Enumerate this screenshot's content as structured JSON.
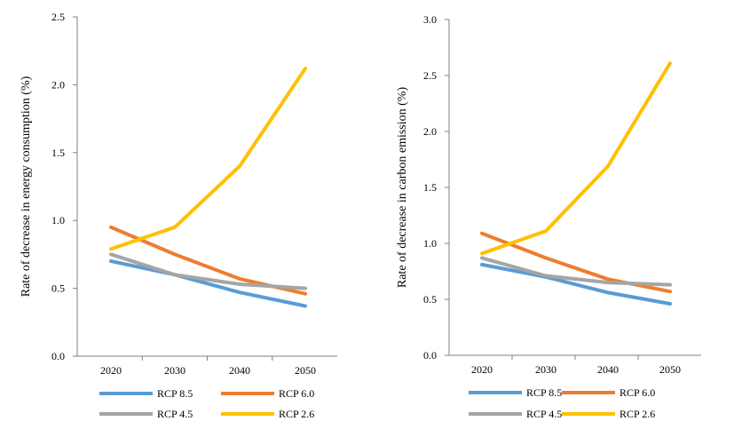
{
  "chart_data": [
    {
      "type": "line",
      "title": "",
      "xlabel": "",
      "ylabel": "Rate of decrease in energy consumption (%)",
      "categories": [
        "2020",
        "2030",
        "2040",
        "2050"
      ],
      "ylim": [
        0,
        2.5
      ],
      "yticks": [
        "0.0",
        "0.5",
        "1.0",
        "1.5",
        "2.0",
        "2.5"
      ],
      "grid": false,
      "legend_position": "bottom",
      "series": [
        {
          "name": "RCP 8.5",
          "color": "#5B9BD5",
          "values": [
            0.7,
            0.6,
            0.47,
            0.37
          ]
        },
        {
          "name": "RCP 6.0",
          "color": "#ED7D31",
          "values": [
            0.95,
            0.75,
            0.57,
            0.46
          ]
        },
        {
          "name": "RCP 4.5",
          "color": "#A5A5A5",
          "values": [
            0.75,
            0.6,
            0.53,
            0.5
          ]
        },
        {
          "name": "RCP 2.6",
          "color": "#FFC000",
          "values": [
            0.79,
            0.95,
            1.4,
            2.12
          ]
        }
      ]
    },
    {
      "type": "line",
      "title": "",
      "xlabel": "",
      "ylabel": "Rate of decrease in carbon emission (%)",
      "categories": [
        "2020",
        "2030",
        "2040",
        "2050"
      ],
      "ylim": [
        0,
        3.0
      ],
      "yticks": [
        "0.0",
        "0.5",
        "1.0",
        "1.5",
        "2.0",
        "2.5",
        "3.0"
      ],
      "grid": false,
      "legend_position": "bottom",
      "series": [
        {
          "name": "RCP 8.5",
          "color": "#5B9BD5",
          "values": [
            0.81,
            0.7,
            0.56,
            0.46
          ]
        },
        {
          "name": "RCP 6.0",
          "color": "#ED7D31",
          "values": [
            1.09,
            0.87,
            0.68,
            0.57
          ]
        },
        {
          "name": "RCP 4.5",
          "color": "#A5A5A5",
          "values": [
            0.87,
            0.71,
            0.65,
            0.63
          ]
        },
        {
          "name": "RCP 2.6",
          "color": "#FFC000",
          "values": [
            0.91,
            1.11,
            1.69,
            2.61
          ]
        }
      ]
    }
  ]
}
